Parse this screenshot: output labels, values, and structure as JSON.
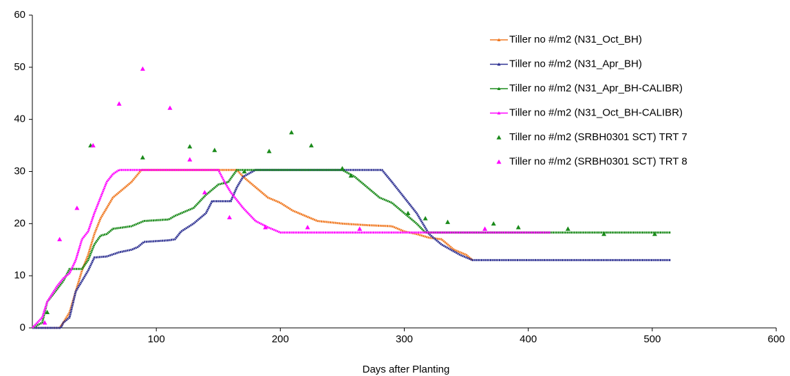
{
  "chart_data": {
    "type": "line",
    "x_label": "Days after Planting",
    "xlim": [
      0,
      600
    ],
    "xticks": [
      100,
      200,
      300,
      400,
      500,
      600
    ],
    "ylim": [
      0,
      60
    ],
    "yticks": [
      0,
      10,
      20,
      30,
      40,
      50,
      60
    ],
    "grid": false,
    "legend": "top-right",
    "series": [
      {
        "name": "Tiller no #/m2 (N31_Oct_BH)",
        "color": "#f07820",
        "mode": "line",
        "x": [
          0,
          22,
          25,
          30,
          35,
          40,
          45,
          50,
          55,
          60,
          65,
          70,
          75,
          80,
          88,
          165,
          170,
          180,
          190,
          200,
          210,
          220,
          230,
          250,
          270,
          290,
          300,
          310,
          320,
          330,
          340,
          350,
          355
        ],
        "values": [
          0,
          0,
          1,
          3,
          7,
          11,
          14,
          18,
          21,
          23,
          25,
          26,
          27,
          28,
          30.3,
          30.3,
          29,
          27,
          25,
          24,
          22.5,
          21.5,
          20.5,
          20,
          19.7,
          19.5,
          18.5,
          18,
          17.3,
          17,
          15,
          14,
          13
        ]
      },
      {
        "name": "Tiller no #/m2 (N31_Apr_BH)",
        "color": "#2e3192",
        "mode": "line",
        "x": [
          0,
          23,
          25,
          30,
          35,
          40,
          45,
          50,
          60,
          70,
          80,
          85,
          90,
          110,
          115,
          120,
          130,
          140,
          145,
          160,
          165,
          170,
          180,
          282,
          290,
          300,
          310,
          320,
          330,
          345,
          355,
          515
        ],
        "values": [
          0,
          0,
          1,
          2,
          7,
          9,
          11,
          13.5,
          13.7,
          14.5,
          15,
          15.5,
          16.5,
          16.8,
          17,
          18.5,
          20,
          22,
          24.3,
          24.3,
          27,
          29,
          30.3,
          30.3,
          28,
          25,
          22,
          18,
          16,
          14,
          13,
          13
        ]
      },
      {
        "name": "Tiller no #/m2 (N31_Apr_BH-CALIBR)",
        "color": "#1a8a1a",
        "mode": "line",
        "x": [
          0,
          8,
          12,
          17,
          25,
          30,
          40,
          45,
          50,
          55,
          60,
          65,
          80,
          90,
          110,
          115,
          130,
          140,
          150,
          158,
          165,
          250,
          260,
          270,
          280,
          290,
          300,
          310,
          317,
          515
        ],
        "values": [
          0,
          1,
          5,
          6.5,
          9,
          11.3,
          11.3,
          13,
          16,
          17.7,
          18,
          19,
          19.5,
          20.5,
          20.8,
          21.5,
          23,
          25.5,
          27.5,
          28,
          30.3,
          30.3,
          29,
          27,
          25,
          24,
          22,
          20,
          18.3,
          18.3
        ]
      },
      {
        "name": "Tiller no #/m2 (N31_Oct_BH-CALIBR)",
        "color": "#ff00ff",
        "mode": "line",
        "x": [
          0,
          8,
          12,
          20,
          25,
          30,
          35,
          40,
          45,
          50,
          55,
          60,
          65,
          70,
          150,
          155,
          160,
          170,
          180,
          190,
          200,
          418
        ],
        "values": [
          0,
          2,
          5,
          8,
          9.5,
          10.5,
          13,
          17,
          18.5,
          22,
          25,
          28,
          29.5,
          30.3,
          30.3,
          28,
          26,
          23,
          20.5,
          19.3,
          18.3,
          18.3
        ]
      },
      {
        "name": "Tiller no #/m2 (SRBH0301 SCT) TRT 7",
        "color": "#1a8a1a",
        "mode": "markers",
        "x": [
          12,
          47,
          89,
          127,
          147,
          171,
          191,
          209,
          225,
          250,
          257,
          303,
          317,
          335,
          372,
          392,
          432,
          461,
          502
        ],
        "values": [
          3,
          35,
          32.7,
          34.8,
          34.1,
          30,
          33.9,
          37.5,
          35,
          30.6,
          29.2,
          22,
          21,
          20.3,
          20,
          19.3,
          19,
          18,
          18
        ]
      },
      {
        "name": "Tiller no #/m2 (SRBH0301 SCT) TRT 8",
        "color": "#ff00ff",
        "mode": "markers",
        "x": [
          10,
          22,
          36,
          49,
          70,
          89,
          111,
          127,
          139,
          159,
          188,
          222,
          264,
          365
        ],
        "values": [
          1,
          17,
          23,
          35,
          43,
          49.7,
          42.2,
          32.3,
          26,
          21.2,
          19.3,
          19.3,
          19,
          19
        ]
      }
    ]
  }
}
